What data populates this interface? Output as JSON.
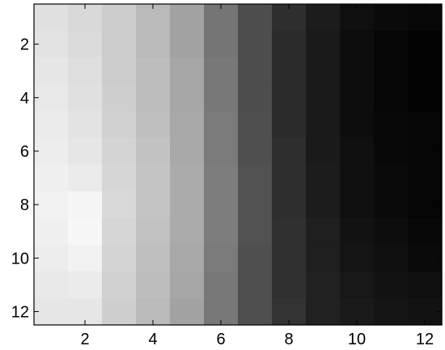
{
  "chart_data": {
    "type": "heatmap",
    "colormap": "gray",
    "color_range": [
      0,
      1
    ],
    "x_axis": {
      "range": [
        0.5,
        12.5
      ],
      "ticks": [
        2,
        4,
        6,
        8,
        10,
        12
      ],
      "tick_labels": [
        "2",
        "4",
        "6",
        "8",
        "10",
        "12"
      ]
    },
    "y_axis": {
      "range": [
        0.5,
        12.5
      ],
      "direction": "reverse",
      "ticks": [
        2,
        4,
        6,
        8,
        10,
        12
      ],
      "tick_labels": [
        "2",
        "4",
        "6",
        "8",
        "10",
        "12"
      ]
    },
    "values": [
      [
        0.88,
        0.85,
        0.8,
        0.73,
        0.64,
        0.46,
        0.3,
        0.18,
        0.11,
        0.06,
        0.04,
        0.03
      ],
      [
        0.89,
        0.86,
        0.8,
        0.73,
        0.64,
        0.46,
        0.3,
        0.17,
        0.1,
        0.05,
        0.02,
        0.01
      ],
      [
        0.9,
        0.87,
        0.8,
        0.74,
        0.65,
        0.47,
        0.3,
        0.17,
        0.1,
        0.05,
        0.02,
        0.01
      ],
      [
        0.91,
        0.88,
        0.81,
        0.74,
        0.65,
        0.47,
        0.3,
        0.17,
        0.1,
        0.05,
        0.02,
        0.01
      ],
      [
        0.92,
        0.89,
        0.82,
        0.75,
        0.66,
        0.48,
        0.31,
        0.17,
        0.1,
        0.05,
        0.03,
        0.02
      ],
      [
        0.93,
        0.9,
        0.83,
        0.76,
        0.66,
        0.48,
        0.31,
        0.18,
        0.1,
        0.06,
        0.03,
        0.02
      ],
      [
        0.94,
        0.92,
        0.84,
        0.77,
        0.67,
        0.49,
        0.32,
        0.18,
        0.11,
        0.06,
        0.04,
        0.02
      ],
      [
        0.95,
        0.96,
        0.85,
        0.77,
        0.67,
        0.49,
        0.32,
        0.18,
        0.11,
        0.06,
        0.04,
        0.02
      ],
      [
        0.94,
        0.97,
        0.84,
        0.76,
        0.67,
        0.49,
        0.32,
        0.19,
        0.12,
        0.07,
        0.05,
        0.03
      ],
      [
        0.93,
        0.95,
        0.83,
        0.75,
        0.66,
        0.48,
        0.31,
        0.19,
        0.12,
        0.08,
        0.06,
        0.04
      ],
      [
        0.91,
        0.92,
        0.82,
        0.74,
        0.65,
        0.47,
        0.31,
        0.19,
        0.13,
        0.09,
        0.07,
        0.06
      ],
      [
        0.9,
        0.9,
        0.81,
        0.73,
        0.64,
        0.47,
        0.31,
        0.2,
        0.13,
        0.1,
        0.08,
        0.07
      ]
    ],
    "title": "",
    "xlabel": "",
    "ylabel": "",
    "grid": false,
    "legend": "none"
  }
}
